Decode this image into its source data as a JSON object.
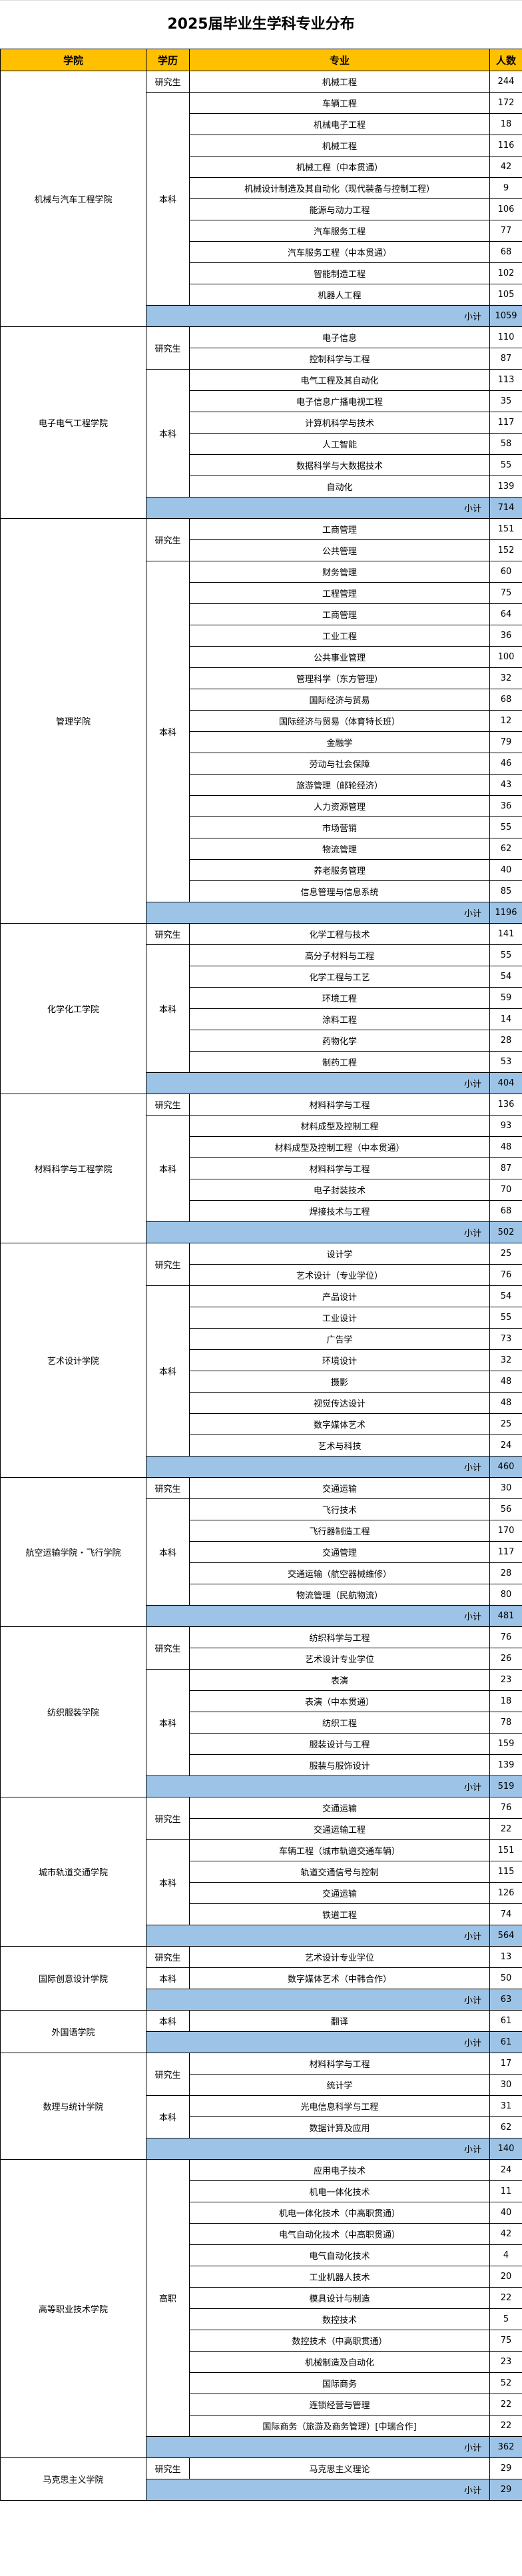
{
  "title": "2025届毕业生学科专业分布",
  "headers": {
    "college": "学院",
    "level": "学历",
    "major": "专业",
    "count": "人数"
  },
  "subtotal_label": "小计",
  "colors": {
    "header": "#FFC000",
    "subtotal": "#9DC3E6"
  },
  "colleges": [
    {
      "name": "机械与汽车工程学院",
      "subtotal": 1059,
      "levels": [
        {
          "level": "研究生",
          "majors": [
            {
              "name": "机械工程",
              "count": 244
            }
          ]
        },
        {
          "level": "本科",
          "majors": [
            {
              "name": "车辆工程",
              "count": 172
            },
            {
              "name": "机械电子工程",
              "count": 18
            },
            {
              "name": "机械工程",
              "count": 116
            },
            {
              "name": "机械工程（中本贯通）",
              "count": 42
            },
            {
              "name": "机械设计制造及其自动化（现代装备与控制工程）",
              "count": 9
            },
            {
              "name": "能源与动力工程",
              "count": 106
            },
            {
              "name": "汽车服务工程",
              "count": 77
            },
            {
              "name": "汽车服务工程（中本贯通）",
              "count": 68
            },
            {
              "name": "智能制造工程",
              "count": 102
            },
            {
              "name": "机器人工程",
              "count": 105
            }
          ]
        }
      ]
    },
    {
      "name": "电子电气工程学院",
      "subtotal": 714,
      "levels": [
        {
          "level": "研究生",
          "majors": [
            {
              "name": "电子信息",
              "count": 110
            },
            {
              "name": "控制科学与工程",
              "count": 87
            }
          ]
        },
        {
          "level": "本科",
          "majors": [
            {
              "name": "电气工程及其自动化",
              "count": 113
            },
            {
              "name": "电子信息广播电视工程",
              "count": 35
            },
            {
              "name": "计算机科学与技术",
              "count": 117
            },
            {
              "name": "人工智能",
              "count": 58
            },
            {
              "name": "数据科学与大数据技术",
              "count": 55
            },
            {
              "name": "自动化",
              "count": 139
            }
          ]
        }
      ]
    },
    {
      "name": "管理学院",
      "subtotal": 1196,
      "levels": [
        {
          "level": "研究生",
          "majors": [
            {
              "name": "工商管理",
              "count": 151
            },
            {
              "name": "公共管理",
              "count": 152
            }
          ]
        },
        {
          "level": "本科",
          "majors": [
            {
              "name": "财务管理",
              "count": 60
            },
            {
              "name": "工程管理",
              "count": 75
            },
            {
              "name": "工商管理",
              "count": 64
            },
            {
              "name": "工业工程",
              "count": 36
            },
            {
              "name": "公共事业管理",
              "count": 100
            },
            {
              "name": "管理科学（东方管理）",
              "count": 32
            },
            {
              "name": "国际经济与贸易",
              "count": 68
            },
            {
              "name": "国际经济与贸易（体育特长班）",
              "count": 12
            },
            {
              "name": "金融学",
              "count": 79
            },
            {
              "name": "劳动与社会保障",
              "count": 46
            },
            {
              "name": "旅游管理（邮轮经济）",
              "count": 43
            },
            {
              "name": "人力资源管理",
              "count": 36
            },
            {
              "name": "市场营销",
              "count": 55
            },
            {
              "name": "物流管理",
              "count": 62
            },
            {
              "name": "养老服务管理",
              "count": 40
            },
            {
              "name": "信息管理与信息系统",
              "count": 85
            }
          ]
        }
      ]
    },
    {
      "name": "化学化工学院",
      "subtotal": 404,
      "levels": [
        {
          "level": "研究生",
          "majors": [
            {
              "name": "化学工程与技术",
              "count": 141
            }
          ]
        },
        {
          "level": "本科",
          "majors": [
            {
              "name": "高分子材料与工程",
              "count": 55
            },
            {
              "name": "化学工程与工艺",
              "count": 54
            },
            {
              "name": "环境工程",
              "count": 59
            },
            {
              "name": "涂料工程",
              "count": 14
            },
            {
              "name": "药物化学",
              "count": 28
            },
            {
              "name": "制药工程",
              "count": 53
            }
          ]
        }
      ]
    },
    {
      "name": "材料科学与工程学院",
      "subtotal": 502,
      "levels": [
        {
          "level": "研究生",
          "majors": [
            {
              "name": "材料科学与工程",
              "count": 136
            }
          ]
        },
        {
          "level": "本科",
          "majors": [
            {
              "name": "材料成型及控制工程",
              "count": 93
            },
            {
              "name": "材料成型及控制工程（中本贯通）",
              "count": 48
            },
            {
              "name": "材料科学与工程",
              "count": 87
            },
            {
              "name": "电子封装技术",
              "count": 70
            },
            {
              "name": "焊接技术与工程",
              "count": 68
            }
          ]
        }
      ]
    },
    {
      "name": "艺术设计学院",
      "subtotal": 460,
      "levels": [
        {
          "level": "研究生",
          "majors": [
            {
              "name": "设计学",
              "count": 25
            },
            {
              "name": "艺术设计（专业学位）",
              "count": 76
            }
          ]
        },
        {
          "level": "本科",
          "majors": [
            {
              "name": "产品设计",
              "count": 54
            },
            {
              "name": "工业设计",
              "count": 55
            },
            {
              "name": "广告学",
              "count": 73
            },
            {
              "name": "环境设计",
              "count": 32
            },
            {
              "name": "摄影",
              "count": 48
            },
            {
              "name": "视觉传达设计",
              "count": 48
            },
            {
              "name": "数字媒体艺术",
              "count": 25
            },
            {
              "name": "艺术与科技",
              "count": 24
            }
          ]
        }
      ]
    },
    {
      "name": "航空运输学院・飞行学院",
      "subtotal": 481,
      "levels": [
        {
          "level": "研究生",
          "majors": [
            {
              "name": "交通运输",
              "count": 30
            }
          ]
        },
        {
          "level": "本科",
          "majors": [
            {
              "name": "飞行技术",
              "count": 56
            },
            {
              "name": "飞行器制造工程",
              "count": 170
            },
            {
              "name": "交通管理",
              "count": 117
            },
            {
              "name": "交通运输（航空器械维修）",
              "count": 28
            },
            {
              "name": "物流管理（民航物流）",
              "count": 80
            }
          ]
        }
      ]
    },
    {
      "name": "纺织服装学院",
      "subtotal": 519,
      "levels": [
        {
          "level": "研究生",
          "majors": [
            {
              "name": "纺织科学与工程",
              "count": 76
            },
            {
              "name": "艺术设计专业学位",
              "count": 26
            }
          ]
        },
        {
          "level": "本科",
          "majors": [
            {
              "name": "表演",
              "count": 23
            },
            {
              "name": "表演（中本贯通）",
              "count": 18
            },
            {
              "name": "纺织工程",
              "count": 78
            },
            {
              "name": "服装设计与工程",
              "count": 159
            },
            {
              "name": "服装与服饰设计",
              "count": 139
            }
          ]
        }
      ]
    },
    {
      "name": "城市轨道交通学院",
      "subtotal": 564,
      "levels": [
        {
          "level": "研究生",
          "majors": [
            {
              "name": "交通运输",
              "count": 76
            },
            {
              "name": "交通运输工程",
              "count": 22
            }
          ]
        },
        {
          "level": "本科",
          "majors": [
            {
              "name": "车辆工程（城市轨道交通车辆）",
              "count": 151
            },
            {
              "name": "轨道交通信号与控制",
              "count": 115
            },
            {
              "name": "交通运输",
              "count": 126
            },
            {
              "name": "铁道工程",
              "count": 74
            }
          ]
        }
      ]
    },
    {
      "name": "国际创意设计学院",
      "subtotal": 63,
      "levels": [
        {
          "level": "研究生",
          "majors": [
            {
              "name": "艺术设计专业学位",
              "count": 13
            }
          ]
        },
        {
          "level": "本科",
          "majors": [
            {
              "name": "数字媒体艺术（中韩合作）",
              "count": 50
            }
          ]
        }
      ]
    },
    {
      "name": "外国语学院",
      "subtotal": 61,
      "levels": [
        {
          "level": "本科",
          "majors": [
            {
              "name": "翻译",
              "count": 61
            }
          ]
        }
      ]
    },
    {
      "name": "数理与统计学院",
      "subtotal": 140,
      "levels": [
        {
          "level": "研究生",
          "majors": [
            {
              "name": "材料科学与工程",
              "count": 17
            },
            {
              "name": "统计学",
              "count": 30
            }
          ]
        },
        {
          "level": "本科",
          "majors": [
            {
              "name": "光电信息科学与工程",
              "count": 31
            },
            {
              "name": "数据计算及应用",
              "count": 62
            }
          ]
        }
      ]
    },
    {
      "name": "高等职业技术学院",
      "subtotal": 362,
      "levels": [
        {
          "level": "高职",
          "majors": [
            {
              "name": "应用电子技术",
              "count": 24
            },
            {
              "name": "机电一体化技术",
              "count": 11
            },
            {
              "name": "机电一体化技术（中高职贯通）",
              "count": 40
            },
            {
              "name": "电气自动化技术（中高职贯通）",
              "count": 42
            },
            {
              "name": "电气自动化技术",
              "count": 4
            },
            {
              "name": "工业机器人技术",
              "count": 20
            },
            {
              "name": "模具设计与制造",
              "count": 22
            },
            {
              "name": "数控技术",
              "count": 5
            },
            {
              "name": "数控技术（中高职贯通）",
              "count": 75
            },
            {
              "name": "机械制造及自动化",
              "count": 23
            },
            {
              "name": "国际商务",
              "count": 52
            },
            {
              "name": "连锁经营与管理",
              "count": 22
            },
            {
              "name": "国际商务（旅游及商务管理）[中瑞合作]",
              "count": 22
            }
          ]
        }
      ]
    },
    {
      "name": "马克思主义学院",
      "subtotal": 29,
      "levels": [
        {
          "level": "研究生",
          "majors": [
            {
              "name": "马克思主义理论",
              "count": 29
            }
          ]
        }
      ]
    }
  ]
}
